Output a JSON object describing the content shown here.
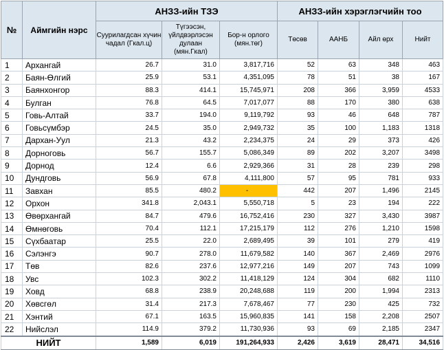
{
  "header": {
    "col_no": "№",
    "col_name": "Аймгийн нэрс",
    "group_tze": "АНЗЗ-ийн ТЗЭ",
    "group_users": "АНЗЗ-ийн хэрэглэгчийн тоо",
    "sub": [
      "Суурилагдсан хүчин чадал (Гкал.ц)",
      "Түгээсэн, үйлдвэрлэсэн дулаан (мян.Гкал)",
      "Бор-н орлого (мян.төг)",
      "Төсөв",
      "ААНБ",
      "Айл өрх",
      "Нийт"
    ]
  },
  "rows": [
    {
      "n": "1",
      "name": "Архангай",
      "cap": "26.7",
      "heat": "31.0",
      "rev": "3,817,716",
      "tosov": "52",
      "aanb": "63",
      "ail": "348",
      "total": "463"
    },
    {
      "n": "2",
      "name": "Баян-Өлгий",
      "cap": "25.9",
      "heat": "53.1",
      "rev": "4,351,095",
      "tosov": "78",
      "aanb": "51",
      "ail": "38",
      "total": "167"
    },
    {
      "n": "3",
      "name": "Баянхонгор",
      "cap": "88.3",
      "heat": "414.1",
      "rev": "15,745,971",
      "tosov": "208",
      "aanb": "366",
      "ail": "3,959",
      "total": "4533"
    },
    {
      "n": "4",
      "name": "Булган",
      "cap": "76.8",
      "heat": "64.5",
      "rev": "7,017,077",
      "tosov": "88",
      "aanb": "170",
      "ail": "380",
      "total": "638"
    },
    {
      "n": "5",
      "name": "Говь-Алтай",
      "cap": "33.7",
      "heat": "194.0",
      "rev": "9,119,792",
      "tosov": "93",
      "aanb": "46",
      "ail": "648",
      "total": "787"
    },
    {
      "n": "6",
      "name": "Говьсүмбэр",
      "cap": "24.5",
      "heat": "35.0",
      "rev": "2,949,732",
      "tosov": "35",
      "aanb": "100",
      "ail": "1,183",
      "total": "1318"
    },
    {
      "n": "7",
      "name": "Дархан-Уул",
      "cap": "21.3",
      "heat": "43.2",
      "rev": "2,234,375",
      "tosov": "24",
      "aanb": "29",
      "ail": "373",
      "total": "426"
    },
    {
      "n": "8",
      "name": "Дорноговь",
      "cap": "56.7",
      "heat": "155.7",
      "rev": "5,086,349",
      "tosov": "89",
      "aanb": "202",
      "ail": "3,207",
      "total": "3498"
    },
    {
      "n": "9",
      "name": "Дорнод",
      "cap": "12.4",
      "heat": "6.6",
      "rev": "2,929,366",
      "tosov": "31",
      "aanb": "28",
      "ail": "239",
      "total": "298"
    },
    {
      "n": "10",
      "name": "Дундговь",
      "cap": "56.9",
      "heat": "67.8",
      "rev": "4,111,800",
      "tosov": "57",
      "aanb": "95",
      "ail": "781",
      "total": "933"
    },
    {
      "n": "11",
      "name": "Завхан",
      "cap": "85.5",
      "heat": "480.2",
      "rev": "-",
      "tosov": "442",
      "aanb": "207",
      "ail": "1,496",
      "total": "2145",
      "highlight": true
    },
    {
      "n": "12",
      "name": "Орхон",
      "cap": "341.8",
      "heat": "2,043.1",
      "rev": "5,550,718",
      "tosov": "5",
      "aanb": "23",
      "ail": "194",
      "total": "222"
    },
    {
      "n": "13",
      "name": "Өвөрхангай",
      "cap": "84.7",
      "heat": "479.6",
      "rev": "16,752,416",
      "tosov": "230",
      "aanb": "327",
      "ail": "3,430",
      "total": "3987"
    },
    {
      "n": "14",
      "name": "Өмнөговь",
      "cap": "70.4",
      "heat": "112.1",
      "rev": "17,215,179",
      "tosov": "112",
      "aanb": "276",
      "ail": "1,210",
      "total": "1598"
    },
    {
      "n": "15",
      "name": "Сүхбаатар",
      "cap": "25.5",
      "heat": "22.0",
      "rev": "2,689,495",
      "tosov": "39",
      "aanb": "101",
      "ail": "279",
      "total": "419"
    },
    {
      "n": "16",
      "name": "Сэлэнгэ",
      "cap": "90.7",
      "heat": "278.0",
      "rev": "11,679,582",
      "tosov": "140",
      "aanb": "367",
      "ail": "2,469",
      "total": "2976"
    },
    {
      "n": "17",
      "name": "Төв",
      "cap": "82.6",
      "heat": "237.6",
      "rev": "12,977,216",
      "tosov": "149",
      "aanb": "207",
      "ail": "743",
      "total": "1099"
    },
    {
      "n": "18",
      "name": "Увс",
      "cap": "102.3",
      "heat": "302.2",
      "rev": "11,418,129",
      "tosov": "124",
      "aanb": "304",
      "ail": "682",
      "total": "1110"
    },
    {
      "n": "19",
      "name": "Ховд",
      "cap": "68.8",
      "heat": "238.9",
      "rev": "20,248,688",
      "tosov": "119",
      "aanb": "200",
      "ail": "1,994",
      "total": "2313"
    },
    {
      "n": "20",
      "name": "Хөвсгөл",
      "cap": "31.4",
      "heat": "217.3",
      "rev": "7,678,467",
      "tosov": "77",
      "aanb": "230",
      "ail": "425",
      "total": "732"
    },
    {
      "n": "21",
      "name": "Хэнтий",
      "cap": "67.1",
      "heat": "163.5",
      "rev": "15,960,835",
      "tosov": "141",
      "aanb": "158",
      "ail": "2,208",
      "total": "2507"
    },
    {
      "n": "22",
      "name": "Нийслэл",
      "cap": "114.9",
      "heat": "379.2",
      "rev": "11,730,936",
      "tosov": "93",
      "aanb": "69",
      "ail": "2,185",
      "total": "2347"
    }
  ],
  "total": {
    "label": "НИЙТ",
    "cap": "1,589",
    "heat": "6,019",
    "rev": "191,264,933",
    "tosov": "2,426",
    "aanb": "3,619",
    "ail": "28,471",
    "total": "34,516"
  },
  "colors": {
    "header_bg": "#dce6ef",
    "highlight": "#ffc000"
  }
}
